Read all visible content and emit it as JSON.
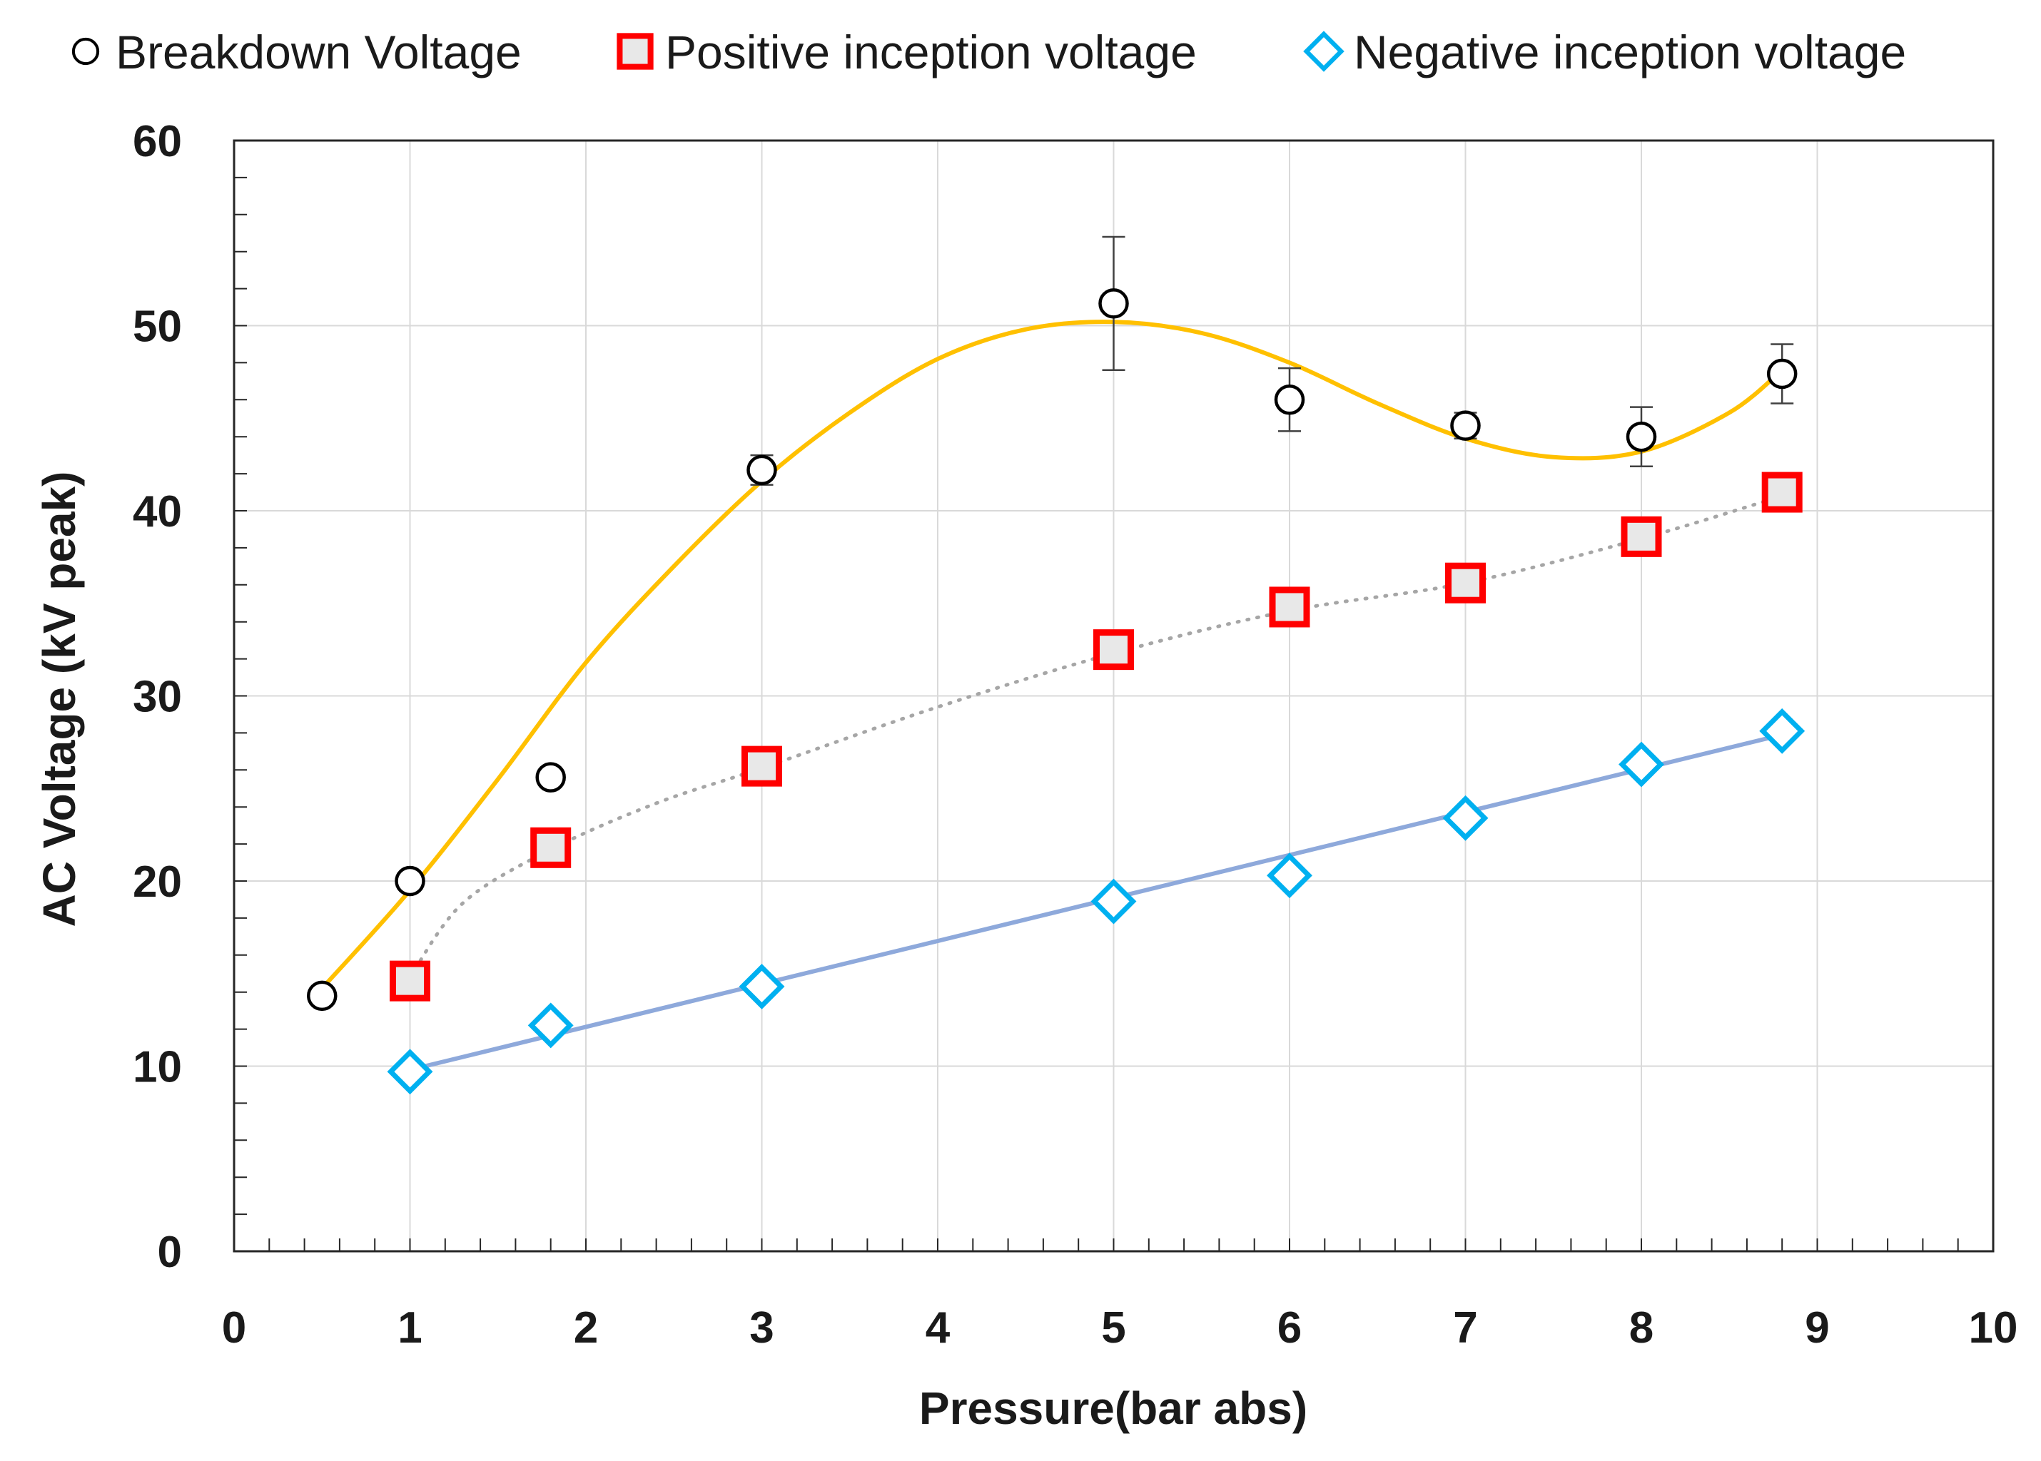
{
  "chart_data": {
    "type": "scatter",
    "xlabel": "Pressure(bar abs)",
    "ylabel": "AC Voltage (kV peak)",
    "xlim": [
      0,
      10
    ],
    "ylim": [
      0,
      60
    ],
    "xticks": [
      "0",
      "1",
      "2",
      "3",
      "4",
      "5",
      "6",
      "7",
      "8",
      "9",
      "10"
    ],
    "yticks": [
      "0",
      "10",
      "20",
      "30",
      "40",
      "50",
      "60"
    ],
    "grid": true,
    "legend_position": "top",
    "series": [
      {
        "name": "Breakdown Voltage",
        "marker": "circle",
        "marker_color": "#000000",
        "fit_color": "#FFC000",
        "x": [
          0.5,
          1,
          1.8,
          3,
          5,
          6,
          7,
          8,
          8.8
        ],
        "y": [
          13.8,
          20,
          25.6,
          42.2,
          51.2,
          46,
          44.6,
          44,
          47.4
        ],
        "error": [
          0,
          0,
          0,
          0.8,
          3.6,
          1.7,
          0.7,
          1.6,
          1.6
        ],
        "fit": {
          "type": "smooth",
          "x": [
            0.5,
            1,
            1.5,
            2,
            2.5,
            3,
            3.5,
            4,
            4.5,
            5,
            5.5,
            6,
            6.5,
            7,
            7.5,
            8,
            8.5,
            8.8
          ],
          "y": [
            14.2,
            19.5,
            25.5,
            31.8,
            37.0,
            41.6,
            45.3,
            48.2,
            49.8,
            50.2,
            49.6,
            48.0,
            45.8,
            43.9,
            42.9,
            43.2,
            45.3,
            47.6
          ]
        }
      },
      {
        "name": "Positive inception voltage",
        "marker": "square",
        "marker_color": "#FF0000",
        "fit_color": "#A6A6A6",
        "x": [
          1,
          1.8,
          3,
          5,
          6,
          7,
          8,
          8.8
        ],
        "y": [
          14.6,
          21.8,
          26.2,
          32.5,
          34.8,
          36.1,
          38.6,
          41
        ],
        "fit": {
          "type": "dotted",
          "x": [
            1,
            1.3,
            1.8,
            2.4,
            3,
            4,
            5,
            6,
            7,
            8,
            8.8
          ],
          "y": [
            14.8,
            18.8,
            21.7,
            24.2,
            26.1,
            29.4,
            32.3,
            34.6,
            36.1,
            38.5,
            40.8
          ]
        }
      },
      {
        "name": "Negative inception voltage",
        "marker": "diamond",
        "marker_color": "#00B0F0",
        "fit_color": "#8EA9DB",
        "x": [
          1,
          1.8,
          3,
          5,
          6,
          7,
          8,
          8.8
        ],
        "y": [
          9.7,
          12.2,
          14.3,
          18.9,
          20.3,
          23.4,
          26.3,
          28.1
        ],
        "fit": {
          "type": "linear",
          "x": [
            1,
            8.8
          ],
          "y": [
            9.8,
            27.9
          ]
        }
      }
    ]
  }
}
